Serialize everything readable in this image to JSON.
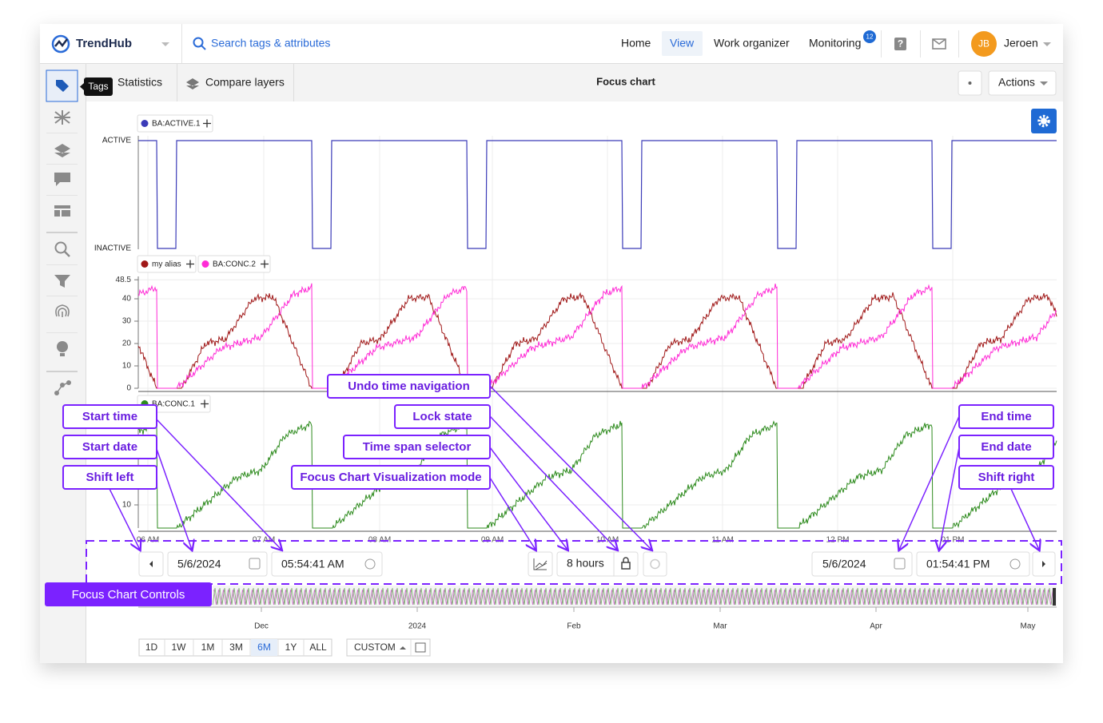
{
  "header": {
    "logo": "TrendHub",
    "search": "Search tags & attributes",
    "nav": [
      "Home",
      "View",
      "Work organizer",
      "Monitoring"
    ],
    "notification_count": "12",
    "user_initials": "JB",
    "user_name": "Jeroen"
  },
  "toolbar": {
    "tooltip": "Tags",
    "tabs": [
      "Statistics",
      "Compare layers"
    ],
    "title": "Focus chart",
    "actions": "Actions"
  },
  "focus_chart": {
    "panels": [
      {
        "legend": [
          "BA:ACTIVE.1"
        ],
        "state_labels": [
          "ACTIVE",
          "INACTIVE"
        ]
      },
      {
        "legend": [
          "my alias",
          "BA:CONC.2"
        ],
        "yticks": [
          48.5,
          40,
          30,
          20,
          10,
          0
        ]
      },
      {
        "legend": [
          "BA:CONC.1"
        ],
        "yticks": [
          10
        ]
      }
    ],
    "xticks": [
      "06 AM",
      "07 AM",
      "08 AM",
      "09 AM",
      "10 AM",
      "11 AM",
      "12 PM",
      "01 PM"
    ],
    "controls": {
      "start_date": "5/6/2024",
      "start_time": "05:54:41 AM",
      "time_span": "8 hours",
      "end_date": "5/6/2024",
      "end_time": "01:54:41 PM"
    },
    "navigator_labels": [
      "Dec",
      "2024",
      "Feb",
      "Mar",
      "Apr",
      "May"
    ],
    "range_buttons": [
      "1D",
      "1W",
      "1M",
      "3M",
      "6M",
      "1Y",
      "ALL"
    ],
    "custom": "CUSTOM"
  },
  "annotations": [
    "Undo time navigation",
    "Start time",
    "Lock state",
    "Start date",
    "Time span selector",
    "End time",
    "End date",
    "Shift left",
    "Focus Chart Visualization mode",
    "Shift right",
    "Focus Chart Controls"
  ]
}
